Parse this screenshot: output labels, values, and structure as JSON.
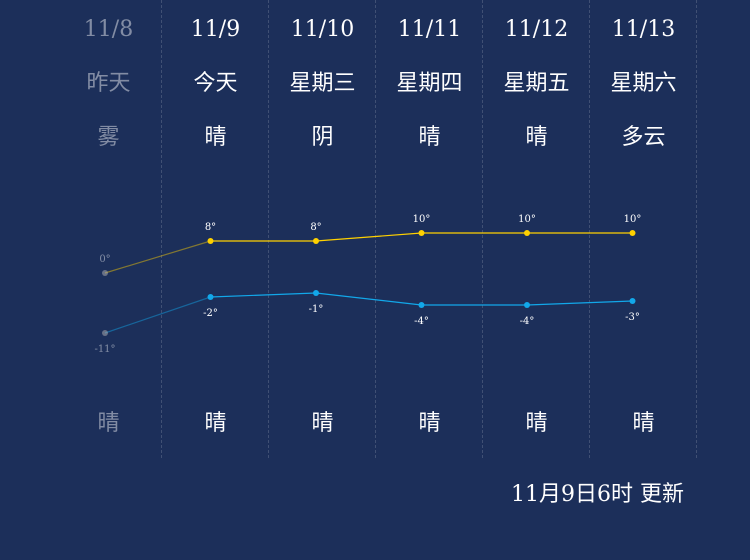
{
  "colors": {
    "background": "#1c2f5a",
    "high_line": "#ffd100",
    "low_line": "#12a8ea",
    "past_text": "rgba(255,255,255,0.45)"
  },
  "days": [
    {
      "date": "11/8",
      "weekday": "昨天",
      "day_weather": "雾",
      "night_weather": "晴",
      "high": "0°",
      "low": "-11°",
      "past": true
    },
    {
      "date": "11/9",
      "weekday": "今天",
      "day_weather": "晴",
      "night_weather": "晴",
      "high": "8°",
      "low": "-2°",
      "past": false
    },
    {
      "date": "11/10",
      "weekday": "星期三",
      "day_weather": "阴",
      "night_weather": "晴",
      "high": "8°",
      "low": "-1°",
      "past": false
    },
    {
      "date": "11/11",
      "weekday": "星期四",
      "day_weather": "晴",
      "night_weather": "晴",
      "high": "10°",
      "low": "-4°",
      "past": false
    },
    {
      "date": "11/12",
      "weekday": "星期五",
      "day_weather": "晴",
      "night_weather": "晴",
      "high": "10°",
      "low": "-4°",
      "past": false
    },
    {
      "date": "11/13",
      "weekday": "星期六",
      "day_weather": "多云",
      "night_weather": "晴",
      "high": "10°",
      "low": "-3°",
      "past": false
    }
  ],
  "chart_data": {
    "type": "line",
    "categories": [
      "11/8",
      "11/9",
      "11/10",
      "11/11",
      "11/12",
      "11/13"
    ],
    "series": [
      {
        "values": [
          0,
          8,
          8,
          10,
          10,
          10
        ]
      },
      {
        "values": [
          -11,
          -2,
          -1,
          -4,
          -4,
          -3
        ]
      }
    ]
  },
  "footer": {
    "update_text": "11月9日6时 更新"
  }
}
